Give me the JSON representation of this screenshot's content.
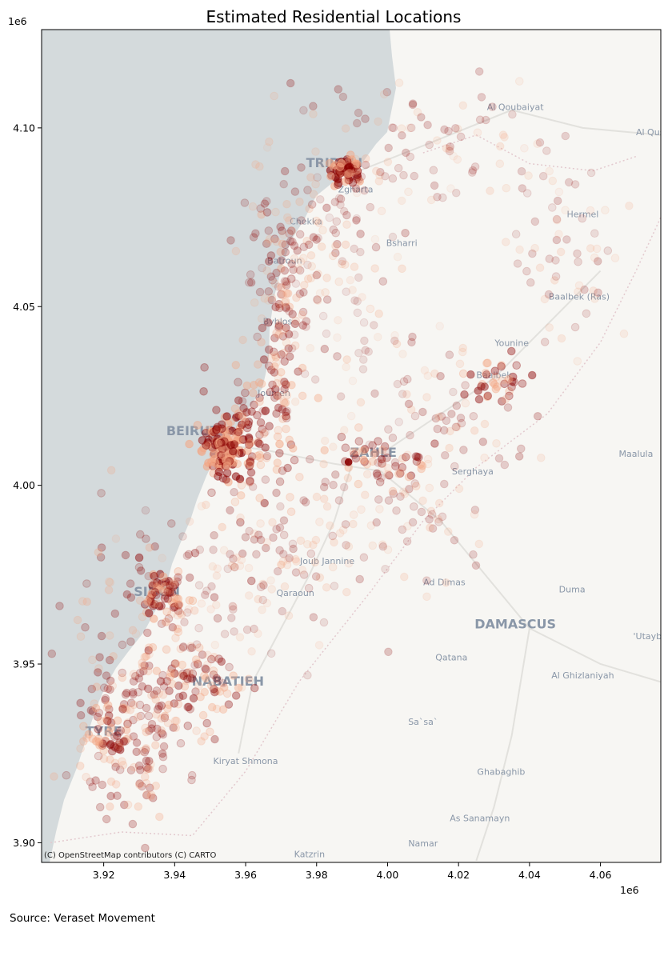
{
  "title": "Estimated Residential Locations",
  "source": "Source: Veraset Movement",
  "attribution": "(C) OpenStreetMap contributors (C) CARTO",
  "axes": {
    "x_scale_label": "1e6",
    "y_scale_label": "1e6",
    "xlim": [
      3.9025,
      4.077
    ],
    "ylim": [
      3.8945,
      4.1275
    ],
    "x_ticks": [
      3.92,
      3.94,
      3.96,
      3.98,
      4.0,
      4.02,
      4.04,
      4.06
    ],
    "x_tick_labels": [
      "3.92",
      "3.94",
      "3.96",
      "3.98",
      "4.00",
      "4.02",
      "4.04",
      "4.06"
    ],
    "y_ticks": [
      3.9,
      3.95,
      4.0,
      4.05,
      4.1
    ],
    "y_tick_labels": [
      "3.90",
      "3.95",
      "4.00",
      "4.05",
      "4.10"
    ]
  },
  "colors": {
    "sea": "#d4dadc",
    "land": "#f7f6f3",
    "point_dark": "#8b0000",
    "point_light": "#f4a582"
  },
  "basemap_labels": [
    {
      "text": "Al Qoubaiyat",
      "x": 4.036,
      "y": 4.105
    },
    {
      "text": "Al Qusayr",
      "x": 4.076,
      "y": 4.098
    },
    {
      "text": "TRIPOLI",
      "x": 3.985,
      "y": 4.089
    },
    {
      "text": "Zgharta",
      "x": 3.991,
      "y": 4.082
    },
    {
      "text": "Chekka",
      "x": 3.977,
      "y": 4.073
    },
    {
      "text": "Bsharri",
      "x": 4.004,
      "y": 4.067
    },
    {
      "text": "Batroun",
      "x": 3.971,
      "y": 4.062
    },
    {
      "text": "Hermel",
      "x": 4.055,
      "y": 4.075
    },
    {
      "text": "Baalbek (Ras)",
      "x": 4.054,
      "y": 4.052
    },
    {
      "text": "Byblos",
      "x": 3.969,
      "y": 4.045
    },
    {
      "text": "Younine",
      "x": 4.035,
      "y": 4.039
    },
    {
      "text": "Baalbek",
      "x": 4.03,
      "y": 4.03
    },
    {
      "text": "Jounieh",
      "x": 3.968,
      "y": 4.025
    },
    {
      "text": "BEIRUT",
      "x": 3.945,
      "y": 4.014
    },
    {
      "text": "ZAHLE",
      "x": 3.996,
      "y": 4.008
    },
    {
      "text": "Maalula",
      "x": 4.07,
      "y": 4.008
    },
    {
      "text": "Serghaya",
      "x": 4.024,
      "y": 4.003
    },
    {
      "text": "Joub Jannine",
      "x": 3.983,
      "y": 3.978
    },
    {
      "text": "Ad Dimas",
      "x": 4.016,
      "y": 3.972
    },
    {
      "text": "Duma",
      "x": 4.052,
      "y": 3.97
    },
    {
      "text": "SIDON",
      "x": 3.935,
      "y": 3.969
    },
    {
      "text": "Qaraoun",
      "x": 3.974,
      "y": 3.969
    },
    {
      "text": "DAMASCUS",
      "x": 4.036,
      "y": 3.96
    },
    {
      "text": "'Utayba",
      "x": 4.074,
      "y": 3.957
    },
    {
      "text": "Qatana",
      "x": 4.018,
      "y": 3.951
    },
    {
      "text": "Al Ghizlaniyah",
      "x": 4.055,
      "y": 3.946
    },
    {
      "text": "NABATIEH",
      "x": 3.955,
      "y": 3.944
    },
    {
      "text": "Sa`sa`",
      "x": 4.01,
      "y": 3.933
    },
    {
      "text": "TYRE",
      "x": 3.92,
      "y": 3.93
    },
    {
      "text": "Kiryat Shmona",
      "x": 3.96,
      "y": 3.922
    },
    {
      "text": "Ghabaghib",
      "x": 4.032,
      "y": 3.919
    },
    {
      "text": "As Sanamayn",
      "x": 4.026,
      "y": 3.906
    },
    {
      "text": "Namar",
      "x": 4.01,
      "y": 3.899
    },
    {
      "text": "Katzrin",
      "x": 3.978,
      "y": 3.896
    }
  ]
}
